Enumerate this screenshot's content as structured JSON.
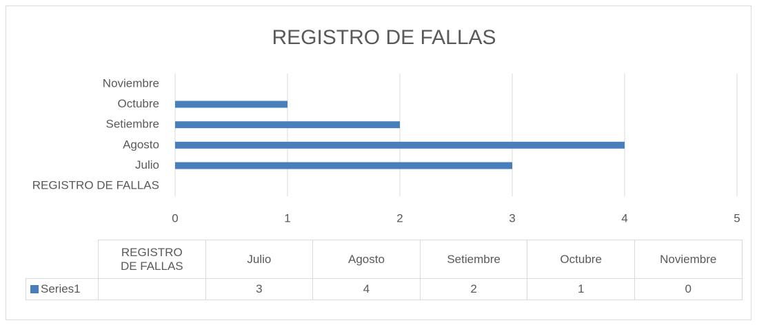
{
  "chart_data": {
    "type": "barh",
    "title": "REGISTRO DE FALLAS",
    "categories": [
      "REGISTRO DE FALLAS",
      "Julio",
      "Agosto",
      "Setiembre",
      "Octubre",
      "Noviembre"
    ],
    "series": [
      {
        "name": "Series1",
        "color": "#4a7ebb",
        "values": [
          null,
          3,
          4,
          2,
          1,
          0
        ]
      }
    ],
    "xlim": [
      0,
      5
    ],
    "xticks": [
      0,
      1,
      2,
      3,
      4,
      5
    ],
    "grid": true,
    "data_table": true
  }
}
